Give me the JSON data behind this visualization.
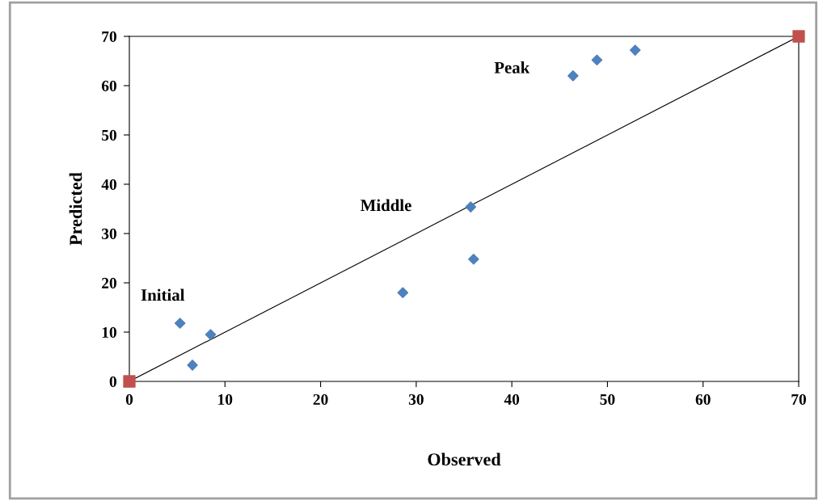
{
  "chart_data": {
    "type": "scatter",
    "xlabel": "Observed",
    "ylabel": "Predicted",
    "xlim": [
      0,
      70
    ],
    "xticks": [
      0,
      10,
      20,
      30,
      40,
      50,
      60,
      70
    ],
    "ylim": [
      0,
      70
    ],
    "yticks": [
      0,
      10,
      20,
      30,
      40,
      50,
      60,
      70
    ],
    "grid": false,
    "legend": false,
    "series": [
      {
        "type": "line",
        "color": "#000000",
        "marker": "none",
        "line_style": "solid",
        "x": [
          0,
          70
        ],
        "values": [
          0,
          70
        ]
      },
      {
        "color": "#4f81bd",
        "marker": "diamond",
        "x": [
          5.3,
          6.6,
          8.5,
          28.6,
          35.7,
          36.0,
          46.4,
          48.9,
          52.9
        ],
        "values": [
          11.8,
          3.3,
          9.5,
          18.0,
          35.4,
          24.8,
          62.0,
          65.2,
          67.2
        ]
      },
      {
        "color": "#c0504d",
        "marker": "square",
        "x": [
          0,
          70
        ],
        "values": [
          0,
          70
        ]
      }
    ],
    "annotations": [
      "Initial",
      "Middle",
      "Peak"
    ]
  }
}
